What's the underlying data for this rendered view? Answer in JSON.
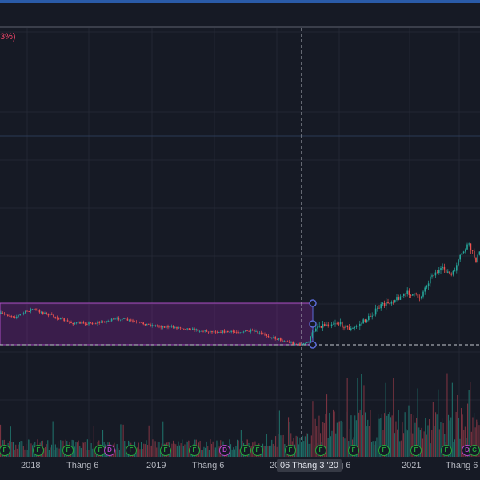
{
  "change_label": "3%)",
  "crosshair_date": "06 Tháng 3 '20",
  "x_axis": {
    "ticks": [
      "2018",
      "Tháng 6",
      "2019",
      "Tháng 6",
      "2020",
      "Tháng 6",
      "2021",
      "Tháng 6"
    ]
  },
  "events": [
    "F",
    "F",
    "F",
    "F",
    "D",
    "F",
    "F",
    "F",
    "D",
    "F",
    "F",
    "F",
    "F",
    "F",
    "F",
    "F",
    "F",
    "D",
    "C"
  ],
  "colors": {
    "background": "#161a25",
    "up": "#26a69a",
    "down": "#ef5350",
    "range_box": "#9c27b0",
    "grid": "#232734"
  },
  "chart_data": {
    "type": "candlestick",
    "title": "",
    "x_range": [
      "2017-10",
      "2021-09"
    ],
    "price_index": {
      "start_level": 1.0,
      "end_2019": 0.92,
      "low_2020_03": 0.83,
      "peak_2021": 1.35
    },
    "annotations": [
      {
        "type": "date-price-range",
        "from": "2017-10",
        "to": "2020-03"
      }
    ],
    "grid": true
  }
}
